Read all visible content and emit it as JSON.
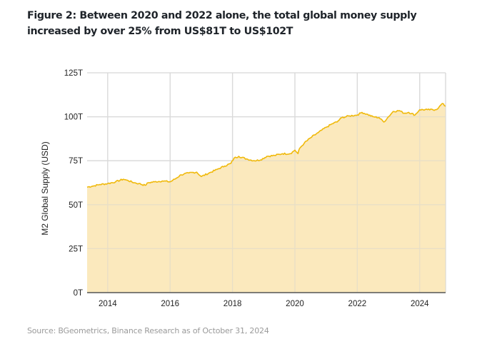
{
  "figure": {
    "title": "Figure 2: Between 2020 and 2022 alone, the total global money supply increased by over 25% from US$81T to US$102T",
    "source": "Source: BGeometrics, Binance Research as of October 31, 2024"
  },
  "colors": {
    "line": "#f0b90b",
    "fill": "#fae5b2",
    "grid": "#d9d9d9",
    "axis": "#555555"
  },
  "chart_data": {
    "type": "area",
    "title": "Figure 2: Between 2020 and 2022 alone, the total global money supply increased by over 25% from US$81T to US$102T",
    "xlabel": "",
    "ylabel": "M2 Global Supply (USD)",
    "xlim": [
      2013.34,
      2024.83
    ],
    "ylim": [
      0,
      125
    ],
    "grid": true,
    "legend": "none",
    "x_ticks": [
      2014,
      2016,
      2018,
      2020,
      2022,
      2024
    ],
    "x_tick_labels": [
      "2014",
      "2016",
      "2018",
      "2020",
      "2022",
      "2024"
    ],
    "y_ticks": [
      0,
      25,
      50,
      75,
      100,
      125
    ],
    "y_tick_labels": [
      "0T",
      "25T",
      "50T",
      "75T",
      "100T",
      "125T"
    ],
    "series": [
      {
        "name": "M2 Global Supply (USD, trillions)",
        "x": [
          2013.34,
          2013.5,
          2013.75,
          2014.0,
          2014.25,
          2014.5,
          2014.6,
          2014.85,
          2015.0,
          2015.2,
          2015.3,
          2015.5,
          2015.75,
          2016.0,
          2016.15,
          2016.35,
          2016.6,
          2016.85,
          2017.0,
          2017.25,
          2017.5,
          2017.75,
          2017.95,
          2018.05,
          2018.2,
          2018.45,
          2018.7,
          2018.9,
          2019.1,
          2019.35,
          2019.6,
          2019.85,
          2020.0,
          2020.1,
          2020.15,
          2020.3,
          2020.5,
          2020.75,
          2021.0,
          2021.25,
          2021.35,
          2021.5,
          2021.75,
          2022.0,
          2022.15,
          2022.3,
          2022.5,
          2022.7,
          2022.85,
          2023.0,
          2023.15,
          2023.35,
          2023.5,
          2023.65,
          2023.85,
          2024.0,
          2024.25,
          2024.5,
          2024.6,
          2024.72,
          2024.83
        ],
        "values": [
          60,
          60.5,
          61.5,
          62,
          63,
          64.5,
          64,
          62.5,
          62,
          61,
          62.5,
          63,
          63.5,
          63,
          64.5,
          67,
          68,
          68.5,
          66,
          68,
          70,
          72,
          73.5,
          76.5,
          77.5,
          76,
          75,
          75.5,
          77.5,
          78,
          79,
          79,
          81,
          79,
          82,
          85,
          88,
          91,
          94,
          96.5,
          97,
          99.5,
          100.5,
          101,
          102.5,
          101.5,
          100,
          99.5,
          97,
          100,
          103,
          103.5,
          102,
          102.5,
          101,
          104,
          104,
          104,
          105,
          107.5,
          106
        ]
      }
    ]
  }
}
